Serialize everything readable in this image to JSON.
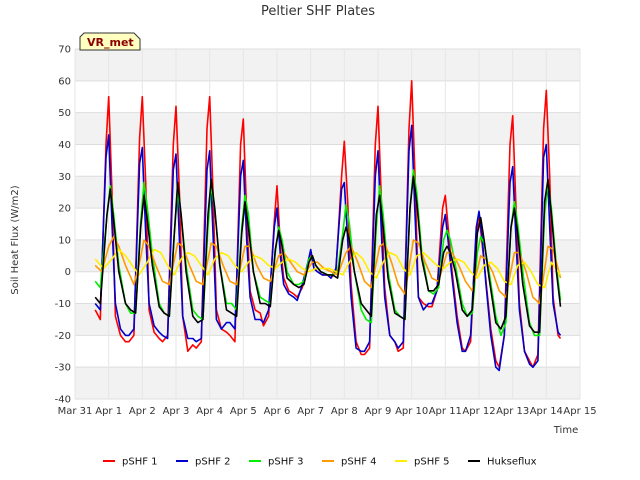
{
  "chart_data": {
    "type": "line",
    "title": "Peltier SHF Plates",
    "xlabel": "Time",
    "ylabel": "Soil Heat Flux (W/m2)",
    "site_label": "VR_met",
    "ylim": [
      -40,
      70
    ],
    "xlim": [
      0,
      15
    ],
    "y_ticks": [
      -40,
      -30,
      -20,
      -10,
      0,
      10,
      20,
      30,
      40,
      50,
      60,
      70
    ],
    "x_ticks": [
      0,
      1,
      2,
      3,
      4,
      5,
      6,
      7,
      8,
      9,
      10,
      11,
      12,
      13,
      14,
      15
    ],
    "x_tick_labels": [
      "Mar 31",
      "Apr 1",
      "Apr 2",
      "Apr 3",
      "Apr 4",
      "Apr 5",
      "Apr 6",
      "Apr 7",
      "Apr 8",
      "Apr 9",
      "Apr 10",
      "Apr 11",
      "Apr 12",
      "Apr 13",
      "Apr 14",
      "Apr 15"
    ],
    "grid": true,
    "legend_position": "bottom",
    "series": [
      {
        "name": "pSHF 1",
        "color": "#ff0000",
        "x": [
          0.6,
          0.75,
          0.92,
          1.0,
          1.1,
          1.2,
          1.35,
          1.5,
          1.6,
          1.75,
          1.92,
          2.0,
          2.1,
          2.2,
          2.35,
          2.5,
          2.6,
          2.75,
          2.92,
          3.0,
          3.1,
          3.2,
          3.35,
          3.5,
          3.6,
          3.75,
          3.92,
          4.0,
          4.1,
          4.2,
          4.35,
          4.5,
          4.6,
          4.75,
          4.92,
          5.0,
          5.1,
          5.2,
          5.35,
          5.5,
          5.6,
          5.75,
          5.92,
          6.0,
          6.1,
          6.2,
          6.35,
          6.5,
          6.6,
          6.75,
          6.92,
          7.0,
          7.1,
          7.2,
          7.35,
          7.5,
          7.6,
          7.75,
          7.92,
          8.0,
          8.1,
          8.2,
          8.35,
          8.5,
          8.6,
          8.75,
          8.92,
          9.0,
          9.1,
          9.2,
          9.35,
          9.5,
          9.6,
          9.75,
          9.92,
          10.0,
          10.1,
          10.2,
          10.35,
          10.5,
          10.6,
          10.75,
          10.92,
          11.0,
          11.1,
          11.2,
          11.35,
          11.5,
          11.6,
          11.75,
          11.92,
          12.0,
          12.1,
          12.2,
          12.35,
          12.5,
          12.6,
          12.75,
          12.92,
          13.0,
          13.1,
          13.2,
          13.35,
          13.5,
          13.6,
          13.75,
          13.92,
          14.0,
          14.1,
          14.2,
          14.35,
          14.42
        ],
        "y": [
          -12,
          -15,
          40,
          55,
          25,
          -14,
          -20,
          -22,
          -22,
          -20,
          42,
          55,
          28,
          -12,
          -19,
          -21,
          -22,
          -20,
          40,
          52,
          25,
          -14,
          -25,
          -23,
          -24,
          -22,
          45,
          55,
          25,
          -12,
          -18,
          -19,
          -20,
          -22,
          40,
          48,
          18,
          -6,
          -12,
          -13,
          -17,
          -14,
          16,
          27,
          8,
          -2,
          -6,
          -7,
          -8,
          -5,
          2,
          6,
          1,
          0,
          -1,
          -1,
          -2,
          0,
          30,
          41,
          22,
          -4,
          -22,
          -26,
          -26,
          -24,
          40,
          52,
          22,
          -5,
          -20,
          -22,
          -25,
          -24,
          45,
          60,
          30,
          -8,
          -10,
          -11,
          -11,
          -6,
          20,
          24,
          12,
          0,
          -14,
          -24,
          -25,
          -22,
          12,
          18,
          8,
          -2,
          -18,
          -28,
          -30,
          -20,
          40,
          49,
          20,
          -10,
          -25,
          -28,
          -30,
          -26,
          45,
          57,
          30,
          -8,
          -20,
          -21
        ]
      },
      {
        "name": "pSHF 2",
        "color": "#0000cc",
        "x": [
          0.6,
          0.75,
          0.92,
          1.0,
          1.1,
          1.2,
          1.35,
          1.5,
          1.6,
          1.75,
          1.92,
          2.0,
          2.1,
          2.2,
          2.35,
          2.5,
          2.6,
          2.75,
          2.92,
          3.0,
          3.1,
          3.2,
          3.35,
          3.5,
          3.6,
          3.75,
          3.92,
          4.0,
          4.1,
          4.2,
          4.35,
          4.5,
          4.6,
          4.75,
          4.92,
          5.0,
          5.1,
          5.2,
          5.35,
          5.5,
          5.6,
          5.75,
          5.92,
          6.0,
          6.1,
          6.2,
          6.35,
          6.5,
          6.6,
          6.75,
          6.92,
          7.0,
          7.1,
          7.2,
          7.35,
          7.5,
          7.6,
          7.75,
          7.92,
          8.0,
          8.1,
          8.2,
          8.35,
          8.5,
          8.6,
          8.75,
          8.92,
          9.0,
          9.1,
          9.2,
          9.35,
          9.5,
          9.6,
          9.75,
          9.92,
          10.0,
          10.1,
          10.2,
          10.35,
          10.5,
          10.6,
          10.75,
          10.92,
          11.0,
          11.1,
          11.2,
          11.35,
          11.5,
          11.6,
          11.75,
          11.92,
          12.0,
          12.1,
          12.2,
          12.35,
          12.5,
          12.6,
          12.75,
          12.92,
          13.0,
          13.1,
          13.2,
          13.35,
          13.5,
          13.6,
          13.75,
          13.92,
          14.0,
          14.1,
          14.2,
          14.35,
          14.42
        ],
        "y": [
          -10,
          -12,
          36,
          43,
          15,
          -10,
          -18,
          -20,
          -20,
          -18,
          34,
          39,
          12,
          -10,
          -17,
          -19,
          -20,
          -21,
          32,
          37,
          10,
          -14,
          -21,
          -21,
          -22,
          -21,
          32,
          38,
          12,
          -15,
          -18,
          -16,
          -16,
          -18,
          30,
          35,
          10,
          -8,
          -15,
          -15,
          -16,
          -12,
          14,
          20,
          5,
          -4,
          -7,
          -8,
          -9,
          -4,
          3,
          7,
          1,
          0,
          -1,
          -1,
          -2,
          1,
          26,
          28,
          10,
          -8,
          -24,
          -25,
          -25,
          -22,
          30,
          38,
          12,
          -8,
          -20,
          -22,
          -24,
          -22,
          38,
          46,
          18,
          -8,
          -12,
          -10,
          -10,
          -6,
          14,
          18,
          8,
          -2,
          -16,
          -25,
          -25,
          -20,
          14,
          19,
          10,
          -3,
          -20,
          -30,
          -31,
          -20,
          28,
          33,
          10,
          -12,
          -25,
          -29,
          -30,
          -28,
          36,
          40,
          14,
          -10,
          -19,
          -20
        ]
      },
      {
        "name": "pSHF 3",
        "color": "#00ee00",
        "x": [
          0.6,
          0.75,
          0.95,
          1.05,
          1.15,
          1.3,
          1.5,
          1.65,
          1.8,
          1.95,
          2.05,
          2.15,
          2.3,
          2.5,
          2.65,
          2.8,
          2.95,
          3.05,
          3.15,
          3.3,
          3.5,
          3.65,
          3.8,
          3.95,
          4.05,
          4.15,
          4.3,
          4.5,
          4.65,
          4.8,
          4.95,
          5.05,
          5.15,
          5.3,
          5.5,
          5.65,
          5.8,
          5.95,
          6.05,
          6.15,
          6.3,
          6.5,
          6.65,
          6.8,
          6.95,
          7.05,
          7.15,
          7.3,
          7.5,
          7.65,
          7.8,
          7.95,
          8.05,
          8.15,
          8.3,
          8.5,
          8.65,
          8.8,
          8.95,
          9.05,
          9.15,
          9.3,
          9.5,
          9.65,
          9.8,
          9.95,
          10.05,
          10.15,
          10.3,
          10.5,
          10.65,
          10.8,
          10.95,
          11.05,
          11.15,
          11.3,
          11.5,
          11.65,
          11.8,
          11.95,
          12.05,
          12.15,
          12.3,
          12.5,
          12.65,
          12.8,
          12.95,
          13.05,
          13.15,
          13.3,
          13.5,
          13.65,
          13.8,
          13.95,
          14.05,
          14.15,
          14.3,
          14.42
        ],
        "y": [
          -3,
          -5,
          18,
          27,
          18,
          2,
          -10,
          -13,
          -13,
          16,
          28,
          20,
          5,
          -10,
          -13,
          -14,
          12,
          25,
          18,
          2,
          -12,
          -14,
          -15,
          14,
          27,
          20,
          2,
          -10,
          -10,
          -12,
          14,
          24,
          18,
          0,
          -8,
          -9,
          -10,
          6,
          14,
          10,
          0,
          -4,
          -4,
          -3,
          4,
          5,
          2,
          0,
          -1,
          -1,
          0,
          12,
          21,
          15,
          0,
          -12,
          -15,
          -16,
          14,
          27,
          18,
          0,
          -12,
          -14,
          -15,
          20,
          32,
          25,
          6,
          -6,
          -7,
          -5,
          10,
          13,
          10,
          2,
          -10,
          -14,
          -13,
          6,
          11,
          9,
          0,
          -14,
          -20,
          -16,
          14,
          22,
          15,
          0,
          -16,
          -20,
          -20,
          18,
          28,
          20,
          2,
          -9
        ]
      },
      {
        "name": "pSHF 4",
        "color": "#ff9900",
        "x": [
          0.6,
          0.8,
          1.0,
          1.15,
          1.3,
          1.5,
          1.75,
          1.9,
          2.05,
          2.2,
          2.4,
          2.6,
          2.8,
          3.05,
          3.2,
          3.4,
          3.6,
          3.8,
          4.05,
          4.2,
          4.4,
          4.6,
          4.8,
          5.05,
          5.2,
          5.4,
          5.6,
          5.8,
          6.05,
          6.2,
          6.4,
          6.6,
          6.8,
          7.05,
          7.2,
          7.4,
          7.6,
          7.8,
          8.05,
          8.2,
          8.4,
          8.6,
          8.8,
          9.05,
          9.2,
          9.4,
          9.6,
          9.8,
          10.05,
          10.2,
          10.4,
          10.6,
          10.8,
          11.05,
          11.2,
          11.4,
          11.6,
          11.8,
          12.05,
          12.2,
          12.4,
          12.6,
          12.8,
          13.05,
          13.2,
          13.4,
          13.6,
          13.8,
          14.05,
          14.2,
          14.42
        ],
        "y": [
          2,
          0,
          8,
          11,
          8,
          2,
          -4,
          2,
          10,
          8,
          2,
          -3,
          -4,
          9,
          8,
          2,
          -3,
          -4,
          9,
          8,
          2,
          -3,
          -4,
          8,
          8,
          2,
          -2,
          -3,
          5,
          6,
          3,
          0,
          -1,
          3,
          3,
          1,
          0,
          -1,
          6,
          8,
          3,
          -3,
          -5,
          8,
          9,
          3,
          -4,
          -7,
          10,
          9,
          3,
          -2,
          -3,
          6,
          6,
          2,
          -3,
          -6,
          5,
          4,
          0,
          -6,
          -8,
          6,
          6,
          0,
          -8,
          -10,
          8,
          7,
          -2
        ]
      },
      {
        "name": "pSHF 5",
        "color": "#ffee00",
        "x": [
          0.6,
          0.85,
          1.1,
          1.3,
          1.5,
          1.7,
          1.9,
          2.15,
          2.35,
          2.55,
          2.75,
          2.95,
          3.15,
          3.35,
          3.55,
          3.75,
          3.95,
          4.15,
          4.35,
          4.55,
          4.75,
          4.95,
          5.15,
          5.35,
          5.55,
          5.75,
          5.95,
          6.15,
          6.35,
          6.55,
          6.75,
          6.95,
          7.15,
          7.35,
          7.55,
          7.75,
          7.95,
          8.15,
          8.35,
          8.55,
          8.75,
          8.95,
          9.15,
          9.35,
          9.55,
          9.75,
          9.95,
          10.15,
          10.35,
          10.55,
          10.75,
          10.95,
          11.15,
          11.35,
          11.55,
          11.75,
          11.95,
          12.15,
          12.35,
          12.55,
          12.75,
          12.95,
          13.15,
          13.35,
          13.55,
          13.75,
          13.95,
          14.15,
          14.42
        ],
        "y": [
          4,
          1,
          4,
          7,
          5,
          2,
          -1,
          3,
          7,
          6,
          2,
          -1,
          4,
          6,
          5,
          2,
          -1,
          4,
          6,
          5,
          2,
          0,
          3,
          5,
          4,
          2,
          1,
          3,
          4,
          3,
          1,
          0,
          1,
          1,
          1,
          0,
          -1,
          3,
          6,
          4,
          0,
          -2,
          3,
          6,
          5,
          1,
          -1,
          5,
          6,
          4,
          2,
          1,
          3,
          4,
          3,
          0,
          -2,
          2,
          3,
          1,
          -3,
          -4,
          2,
          3,
          0,
          -4,
          -5,
          3,
          -1
        ]
      },
      {
        "name": "Hukseflux",
        "color": "#000000",
        "x": [
          0.6,
          0.75,
          0.95,
          1.05,
          1.15,
          1.3,
          1.5,
          1.65,
          1.8,
          1.95,
          2.05,
          2.15,
          2.3,
          2.5,
          2.65,
          2.8,
          2.95,
          3.05,
          3.15,
          3.3,
          3.5,
          3.65,
          3.8,
          3.95,
          4.05,
          4.15,
          4.3,
          4.5,
          4.65,
          4.8,
          4.95,
          5.05,
          5.15,
          5.3,
          5.5,
          5.65,
          5.8,
          5.95,
          6.05,
          6.15,
          6.3,
          6.5,
          6.65,
          6.8,
          6.95,
          7.05,
          7.15,
          7.3,
          7.5,
          7.65,
          7.8,
          7.95,
          8.05,
          8.15,
          8.3,
          8.5,
          8.65,
          8.8,
          8.95,
          9.05,
          9.15,
          9.3,
          9.5,
          9.65,
          9.8,
          9.95,
          10.05,
          10.15,
          10.3,
          10.5,
          10.65,
          10.8,
          10.95,
          11.05,
          11.15,
          11.3,
          11.5,
          11.65,
          11.8,
          11.95,
          12.05,
          12.15,
          12.3,
          12.5,
          12.65,
          12.8,
          12.95,
          13.05,
          13.15,
          13.3,
          13.5,
          13.65,
          13.8,
          13.95,
          14.05,
          14.15,
          14.3,
          14.42
        ],
        "y": [
          -8,
          -10,
          18,
          26,
          16,
          0,
          -10,
          -12,
          -13,
          14,
          24,
          16,
          2,
          -11,
          -13,
          -14,
          12,
          28,
          18,
          0,
          -14,
          -16,
          -15,
          18,
          29,
          20,
          2,
          -12,
          -13,
          -14,
          12,
          22,
          14,
          0,
          -10,
          -10,
          -11,
          7,
          13,
          8,
          -2,
          -4,
          -5,
          -4,
          3,
          5,
          2,
          0,
          -1,
          -1,
          -2,
          10,
          14,
          10,
          0,
          -10,
          -12,
          -14,
          18,
          24,
          14,
          -2,
          -13,
          -14,
          -15,
          20,
          30,
          22,
          4,
          -6,
          -6,
          -4,
          6,
          8,
          6,
          0,
          -12,
          -14,
          -12,
          12,
          17,
          10,
          -2,
          -16,
          -18,
          -14,
          14,
          20,
          12,
          -4,
          -17,
          -19,
          -19,
          22,
          29,
          18,
          0,
          -11
        ]
      }
    ]
  }
}
